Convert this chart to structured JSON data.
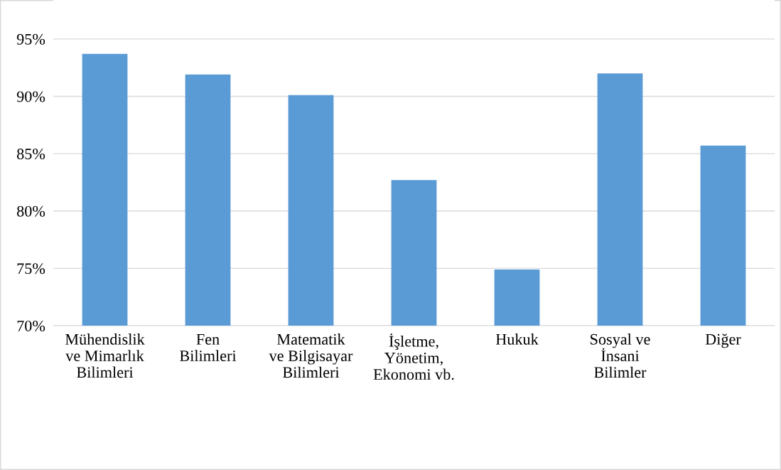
{
  "chart_data": {
    "type": "bar",
    "categories": [
      "Mühendislik\nve Mimarlık\nBilimleri",
      "Fen\nBilimleri",
      "Matematik\nve Bilgisayar\nBilimleri",
      "İşletme,\nYönetim,\nEkonomi vb.",
      "Hukuk",
      "Sosyal ve\nİnsani\nBilimler",
      "Diğer"
    ],
    "values": [
      93.7,
      91.9,
      90.1,
      82.7,
      74.9,
      92.0,
      85.7
    ],
    "color": "#5b9bd5",
    "ylim": [
      70,
      98.4
    ],
    "yticks": [
      {
        "value": 70,
        "label": "70%"
      },
      {
        "value": 75,
        "label": "75%"
      },
      {
        "value": 80,
        "label": "80%"
      },
      {
        "value": 85,
        "label": "85%"
      },
      {
        "value": 90,
        "label": "90%"
      },
      {
        "value": 95,
        "label": "95%"
      }
    ],
    "grid": "y",
    "legend": false
  }
}
